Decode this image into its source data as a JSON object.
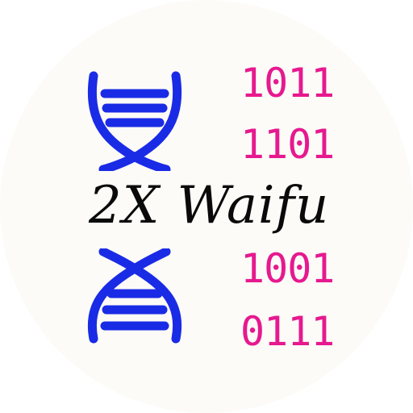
{
  "logo": {
    "title": "2X Waifu",
    "binary_rows": [
      "1011",
      "1101",
      "1001",
      "0111"
    ]
  },
  "colors": {
    "dna": "#1a2be6",
    "binary": "#e6198f",
    "text": "#0a0a0a",
    "badge": "#fcfbf7"
  },
  "icons": {
    "top": "dna-helix-icon",
    "bottom": "dna-helix-icon"
  }
}
